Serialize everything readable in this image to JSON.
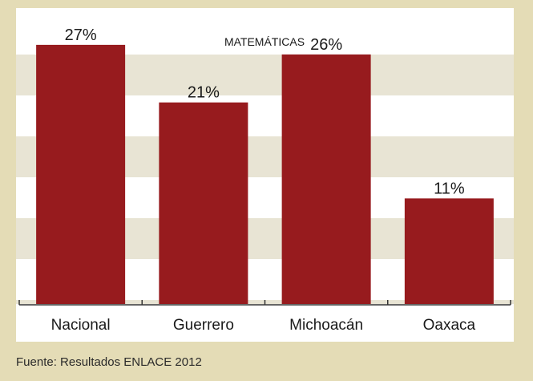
{
  "chart_data": {
    "type": "bar",
    "title": "MATEMÁTICAS",
    "categories": [
      "Nacional",
      "Guerrero",
      "Michoacán",
      "Oaxaca"
    ],
    "values": [
      27,
      21,
      26,
      11
    ],
    "value_labels": [
      "27%",
      "21%",
      "26%",
      "11%"
    ],
    "ylim": [
      0,
      30
    ],
    "bar_color": "#971b1e",
    "band_color": "#e8e4d4",
    "grid": false,
    "legend": "none"
  },
  "source": "Fuente: Resultados ENLACE 2012"
}
